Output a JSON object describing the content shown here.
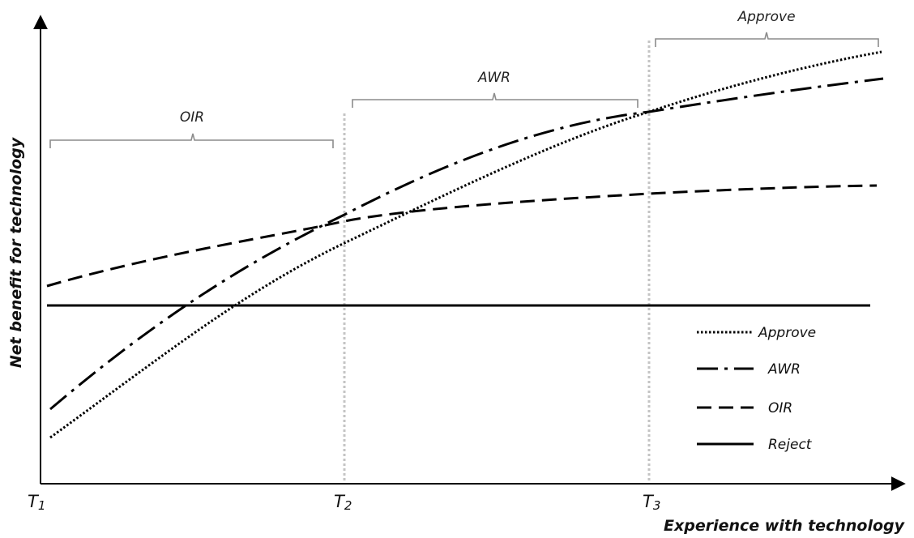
{
  "axes": {
    "y_label": "Net benefit for technology",
    "x_label": "Experience with technology",
    "x_ticks": [
      {
        "main": "T",
        "sub": "1"
      },
      {
        "main": "T",
        "sub": "2"
      },
      {
        "main": "T",
        "sub": "3"
      }
    ]
  },
  "phases": [
    {
      "label": "OIR"
    },
    {
      "label": "AWR"
    },
    {
      "label": "Approve"
    }
  ],
  "legend": [
    {
      "label": "Approve",
      "style": "dotted"
    },
    {
      "label": "AWR",
      "style": "dash-dot"
    },
    {
      "label": "OIR",
      "style": "dashed"
    },
    {
      "label": "Reject",
      "style": "solid"
    }
  ],
  "colors": {
    "line": "#000000",
    "bracket": "#8c8c8c",
    "divider": "#c4c4c4"
  }
}
